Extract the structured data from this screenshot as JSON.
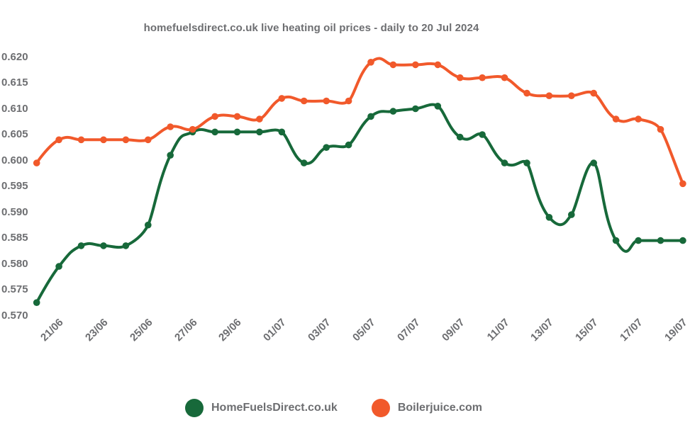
{
  "title": "homefuelsdirect.co.uk live heating oil prices - daily to 20 Jul 2024",
  "text_color": "#6d6e71",
  "background_color": "#ffffff",
  "legend": {
    "items": [
      {
        "label": "HomeFuelsDirect.co.uk",
        "color": "#17693a"
      },
      {
        "label": "Boilerjuice.com",
        "color": "#f1592b"
      }
    ]
  },
  "chart_data": {
    "type": "line",
    "title": "homefuelsdirect.co.uk live heating oil prices - daily to 20 Jul 2024",
    "xlabel": "",
    "ylabel": "",
    "ylim": [
      0.57,
      0.62
    ],
    "grid": false,
    "smooth": true,
    "marker": "circle",
    "legend_position": "bottom",
    "x": [
      "20/06",
      "21/06",
      "22/06",
      "23/06",
      "24/06",
      "25/06",
      "26/06",
      "27/06",
      "28/06",
      "29/06",
      "30/06",
      "01/07",
      "02/07",
      "03/07",
      "04/07",
      "05/07",
      "06/07",
      "07/07",
      "08/07",
      "09/07",
      "10/07",
      "11/07",
      "12/07",
      "13/07",
      "14/07",
      "15/07",
      "16/07",
      "17/07",
      "18/07",
      "19/07"
    ],
    "x_tick_labels": [
      "21/06",
      "23/06",
      "25/06",
      "27/06",
      "29/06",
      "01/07",
      "03/07",
      "05/07",
      "07/07",
      "09/07",
      "11/07",
      "13/07",
      "15/07",
      "17/07",
      "19/07"
    ],
    "y_tick_labels": [
      "0.570",
      "0.575",
      "0.580",
      "0.585",
      "0.590",
      "0.595",
      "0.600",
      "0.605",
      "0.610",
      "0.615",
      "0.620"
    ],
    "series": [
      {
        "name": "HomeFuelsDirect.co.uk",
        "color": "#17693a",
        "values": [
          0.5725,
          0.5795,
          0.5835,
          0.5835,
          0.5835,
          0.5875,
          0.601,
          0.6055,
          0.6055,
          0.6055,
          0.6055,
          0.6055,
          0.5995,
          0.6025,
          0.603,
          0.6085,
          0.6095,
          0.61,
          0.6105,
          0.6045,
          0.605,
          0.5995,
          0.5995,
          0.589,
          0.5895,
          0.5995,
          0.5845,
          0.5845,
          0.5845,
          0.5845
        ]
      },
      {
        "name": "Boilerjuice.com",
        "color": "#f1592b",
        "values": [
          0.5995,
          0.604,
          0.604,
          0.604,
          0.604,
          0.604,
          0.6065,
          0.606,
          0.6085,
          0.6085,
          0.608,
          0.612,
          0.6115,
          0.6115,
          0.6115,
          0.619,
          0.6185,
          0.6185,
          0.6185,
          0.616,
          0.616,
          0.616,
          0.613,
          0.6125,
          0.6125,
          0.613,
          0.608,
          0.608,
          0.606,
          0.5955
        ]
      }
    ]
  }
}
